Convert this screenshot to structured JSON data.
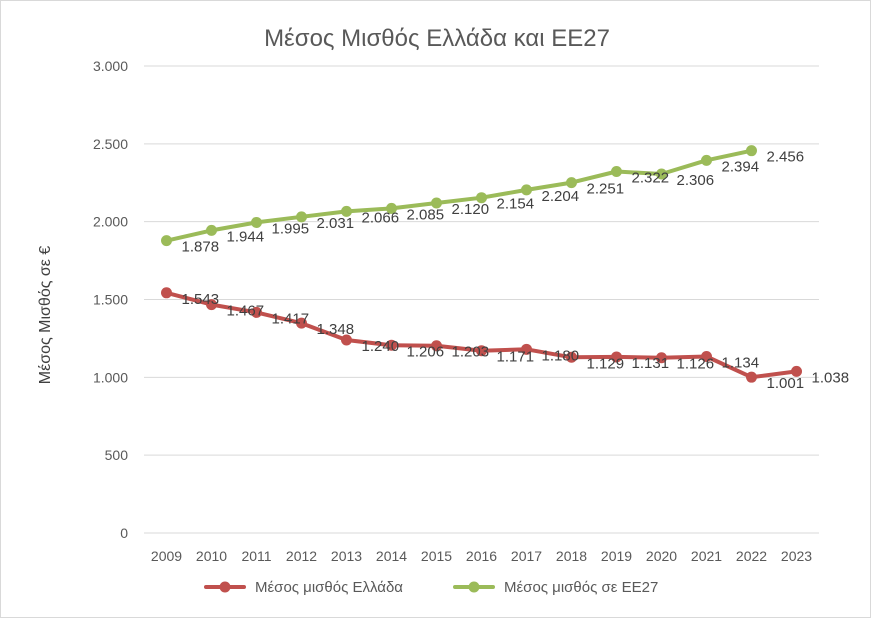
{
  "chart_data": {
    "type": "line",
    "title": "Μέσος Μισθός Ελλάδα και ΕΕ27",
    "xlabel": "",
    "ylabel": "Μέσος Μισθός σε €",
    "categories": [
      "2009",
      "2010",
      "2011",
      "2012",
      "2013",
      "2014",
      "2015",
      "2016",
      "2017",
      "2018",
      "2019",
      "2020",
      "2021",
      "2022",
      "2023"
    ],
    "ylim": [
      0,
      3000
    ],
    "yticks": [
      0,
      500,
      1000,
      1500,
      2000,
      2500,
      3000
    ],
    "ytick_labels": [
      "0",
      "500",
      "1.000",
      "1.500",
      "2.000",
      "2.500",
      "3.000"
    ],
    "grid": true,
    "legend_position": "bottom",
    "series": [
      {
        "name": "Μέσος μισθός Ελλάδα",
        "color": "#c0504d",
        "values": [
          1543,
          1467,
          1417,
          1348,
          1240,
          1206,
          1203,
          1171,
          1180,
          1129,
          1131,
          1126,
          1134,
          1001,
          1038
        ],
        "labels": [
          "1.543",
          "1.467",
          "1.417",
          "1.348",
          "1.240",
          "1.206",
          "1.203",
          "1.171",
          "1.180",
          "1.129",
          "1.131",
          "1.126",
          "1.134",
          "1.001",
          "1.038"
        ]
      },
      {
        "name": "Μέσος μισθός σε ΕΕ27",
        "color": "#9bbb59",
        "values": [
          1878,
          1944,
          1995,
          2031,
          2066,
          2085,
          2120,
          2154,
          2204,
          2251,
          2322,
          2306,
          2394,
          2456,
          null
        ],
        "labels": [
          "1.878",
          "1.944",
          "1.995",
          "2.031",
          "2.066",
          "2.085",
          "2.120",
          "2.154",
          "2.204",
          "2.251",
          "2.322",
          "2.306",
          "2.394",
          "2.456",
          ""
        ]
      }
    ]
  }
}
